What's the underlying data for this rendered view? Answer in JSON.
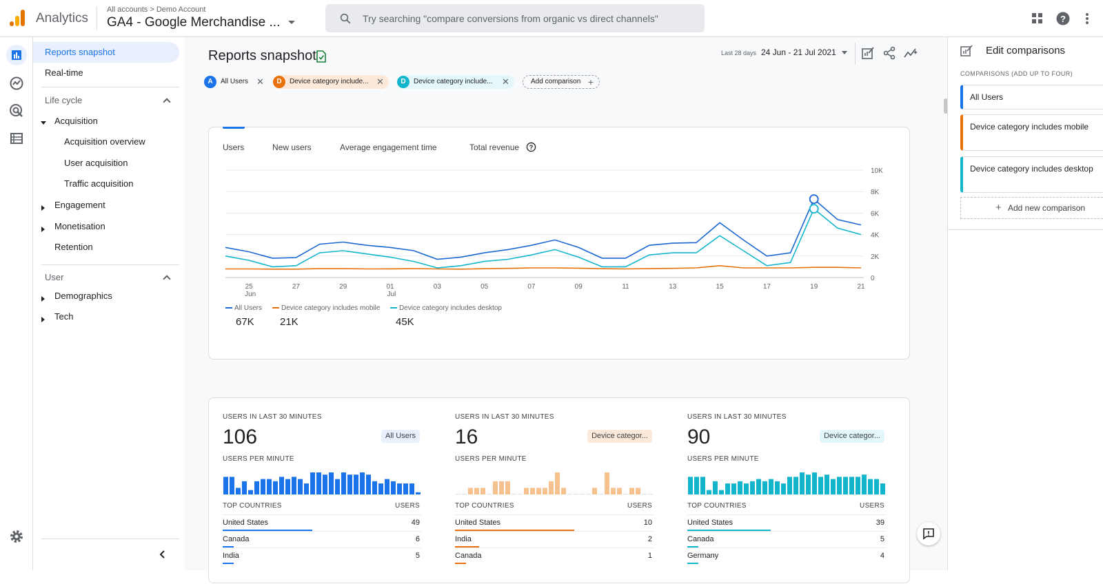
{
  "header": {
    "app_title": "Analytics",
    "breadcrumb": "All accounts > Demo Account",
    "property_name": "GA4 - Google Merchandise ...",
    "search_placeholder": "Try searching \"compare conversions from organic vs direct channels\"",
    "icons": [
      "apps-grid-icon",
      "help-icon",
      "more-vert-icon"
    ]
  },
  "rail": {
    "icons": [
      "reports-icon",
      "explore-icon",
      "advertising-icon",
      "configure-icon",
      "settings-icon"
    ]
  },
  "nav": {
    "reports_snapshot": "Reports snapshot",
    "realtime": "Real-time",
    "lifecycle_section": "Life cycle",
    "acquisition": "Acquisition",
    "acquisition_children": [
      "Acquisition overview",
      "User acquisition",
      "Traffic acquisition"
    ],
    "engagement": "Engagement",
    "monetisation": "Monetisation",
    "retention": "Retention",
    "user_section": "User",
    "demographics": "Demographics",
    "tech": "Tech"
  },
  "main": {
    "title": "Reports snapshot",
    "date_label": "Last 28 days",
    "date_range": "24 Jun - 21 Jul 2021",
    "chips": [
      {
        "badge": "A",
        "label": "All Users",
        "color": "#1a73e8",
        "bg": "#e8f0fe"
      },
      {
        "badge": "D",
        "label": "Device category include...",
        "color": "#e8710a",
        "bg": "#fde9d9"
      },
      {
        "badge": "D",
        "label": "Device category include...",
        "color": "#12b5cb",
        "bg": "#e4f7fb"
      }
    ],
    "add_comparison": "Add comparison",
    "tabs": [
      "Users",
      "New users",
      "Average engagement time",
      "Total revenue"
    ],
    "legend": [
      {
        "name": "All Users",
        "total": "67K",
        "color": "#1967d2"
      },
      {
        "name": "Device category includes mobile",
        "total": "21K",
        "color": "#e8710a"
      },
      {
        "name": "Device category includes desktop",
        "total": "45K",
        "color": "#12b5cb"
      }
    ],
    "realtime": [
      {
        "label": "USERS IN LAST 30 MINUTES",
        "value": "106",
        "tag": "All Users",
        "tag_bg": "#e8f0fe",
        "per_minute_label": "USERS PER MINUTE",
        "color": "#1a73e8",
        "bars": [
          8,
          8,
          3,
          6,
          2,
          6,
          7,
          7,
          6,
          8,
          7,
          8,
          7,
          5,
          10,
          10,
          9,
          10,
          7,
          10,
          9,
          9,
          10,
          9,
          6,
          5,
          7,
          6,
          5,
          5,
          5,
          1
        ],
        "countries_label": "TOP COUNTRIES",
        "users_label": "USERS",
        "countries": [
          {
            "name": "United States",
            "users": "49",
            "share": 0.45
          },
          {
            "name": "Canada",
            "users": "6",
            "share": 0
          },
          {
            "name": "India",
            "users": "5",
            "share": 0
          }
        ]
      },
      {
        "label": "USERS IN LAST 30 MINUTES",
        "value": "16",
        "tag": "Device categor...",
        "tag_bg": "#fde9d9",
        "per_minute_label": "USERS PER MINUTE",
        "color": "#f5c28f",
        "bars": [
          0,
          0,
          3,
          3,
          3,
          0,
          6,
          6,
          6,
          0,
          0,
          3,
          3,
          3,
          3,
          6,
          10,
          3,
          0,
          0,
          0,
          0,
          3,
          0,
          10,
          3,
          3,
          0,
          3,
          3,
          0,
          0
        ],
        "countries_label": "TOP COUNTRIES",
        "users_label": "USERS",
        "countries": [
          {
            "name": "United States",
            "users": "10",
            "share": 0.6
          },
          {
            "name": "India",
            "users": "2",
            "share": 0.12
          },
          {
            "name": "Canada",
            "users": "1",
            "share": 0
          }
        ]
      },
      {
        "label": "USERS IN LAST 30 MINUTES",
        "value": "90",
        "tag": "Device categor...",
        "tag_bg": "#e4f7fb",
        "per_minute_label": "USERS PER MINUTE",
        "color": "#12b5cb",
        "bars": [
          8,
          8,
          8,
          2,
          6,
          2,
          5,
          5,
          6,
          5,
          6,
          7,
          6,
          7,
          6,
          5,
          8,
          8,
          10,
          9,
          10,
          8,
          9,
          7,
          8,
          8,
          8,
          8,
          9,
          7,
          7,
          5
        ],
        "countries_label": "TOP COUNTRIES",
        "users_label": "USERS",
        "countries": [
          {
            "name": "United States",
            "users": "39",
            "share": 0.42
          },
          {
            "name": "Canada",
            "users": "5",
            "share": 0.05
          },
          {
            "name": "Germany",
            "users": "4",
            "share": 0.05
          }
        ]
      }
    ]
  },
  "right_panel": {
    "title": "Edit comparisons",
    "subtitle": "COMPARISONS (ADD UP TO FOUR)",
    "comparisons": [
      {
        "label": "All Users",
        "color": "#1a73e8"
      },
      {
        "label": "Device category includes mobile",
        "color": "#e8710a"
      },
      {
        "label": "Device category includes desktop",
        "color": "#12b5cb"
      }
    ],
    "add_new": "Add new comparison"
  },
  "chart_data": {
    "type": "line",
    "title": "",
    "xlabel": "",
    "ylabel": "",
    "ylim": [
      0,
      10000
    ],
    "yticks": [
      "10K",
      "8K",
      "6K",
      "4K",
      "2K",
      "0"
    ],
    "x": [
      "24 Jun",
      "25 Jun",
      "26 Jun",
      "27 Jun",
      "28 Jun",
      "29 Jun",
      "30 Jun",
      "01 Jul",
      "02 Jul",
      "03 Jul",
      "04 Jul",
      "05 Jul",
      "06 Jul",
      "07 Jul",
      "08 Jul",
      "09 Jul",
      "10 Jul",
      "11 Jul",
      "12 Jul",
      "13 Jul",
      "14 Jul",
      "15 Jul",
      "16 Jul",
      "17 Jul",
      "18 Jul",
      "19 Jul",
      "20 Jul",
      "21 Jul"
    ],
    "xtick_labels": [
      {
        "day": "25",
        "month": "Jun"
      },
      {
        "day": "27",
        "month": ""
      },
      {
        "day": "29",
        "month": ""
      },
      {
        "day": "01",
        "month": "Jul"
      },
      {
        "day": "03",
        "month": ""
      },
      {
        "day": "05",
        "month": ""
      },
      {
        "day": "07",
        "month": ""
      },
      {
        "day": "09",
        "month": ""
      },
      {
        "day": "11",
        "month": ""
      },
      {
        "day": "13",
        "month": ""
      },
      {
        "day": "15",
        "month": ""
      },
      {
        "day": "17",
        "month": ""
      },
      {
        "day": "19",
        "month": ""
      },
      {
        "day": "21",
        "month": ""
      }
    ],
    "grid": true,
    "legend_position": "bottom-left",
    "series": [
      {
        "name": "All Users",
        "color": "#1967d2",
        "values": [
          2800,
          2400,
          1800,
          1850,
          3100,
          3300,
          3000,
          2800,
          2500,
          1700,
          1900,
          2300,
          2600,
          3000,
          3500,
          2800,
          1800,
          1800,
          3000,
          3200,
          3250,
          5100,
          3500,
          2000,
          2300,
          7300,
          5400,
          4900
        ]
      },
      {
        "name": "Device category includes mobile",
        "color": "#e8710a",
        "values": [
          800,
          800,
          780,
          780,
          830,
          830,
          800,
          810,
          830,
          800,
          780,
          820,
          850,
          900,
          900,
          870,
          820,
          800,
          830,
          850,
          900,
          1100,
          900,
          900,
          900,
          950,
          950,
          900
        ]
      },
      {
        "name": "Device category includes desktop",
        "color": "#12b5cb",
        "values": [
          2000,
          1600,
          1000,
          1100,
          2300,
          2500,
          2200,
          1900,
          1500,
          900,
          1100,
          1500,
          1700,
          2100,
          2600,
          1900,
          1000,
          1000,
          2100,
          2300,
          2300,
          3900,
          2500,
          1100,
          1400,
          6400,
          4600,
          4000
        ]
      }
    ]
  }
}
